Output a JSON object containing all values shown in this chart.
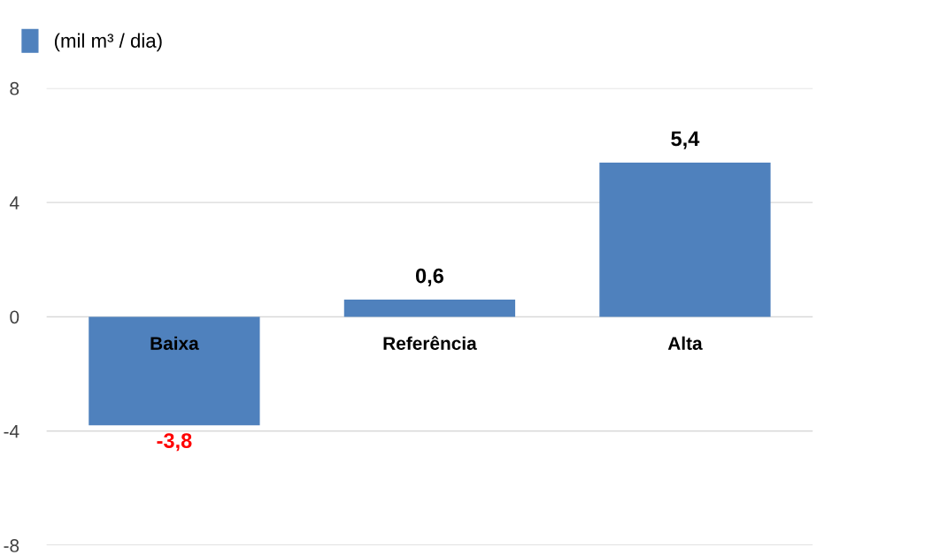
{
  "chart_data": {
    "type": "bar",
    "categories": [
      "Baixa",
      "Referência",
      "Alta"
    ],
    "series": [
      {
        "name": "(mil m³ / dia)",
        "color": "#4f81bd",
        "values": [
          -3.8,
          0.6,
          5.4
        ],
        "value_labels": [
          "-3,8",
          "0,6",
          "5,4"
        ]
      }
    ],
    "ylim": [
      -8,
      8
    ],
    "yticks": [
      {
        "value": -8,
        "label": "-8"
      },
      {
        "value": -4,
        "label": "-4"
      },
      0,
      4,
      8
    ],
    "grid": "y",
    "legend": "top left"
  }
}
